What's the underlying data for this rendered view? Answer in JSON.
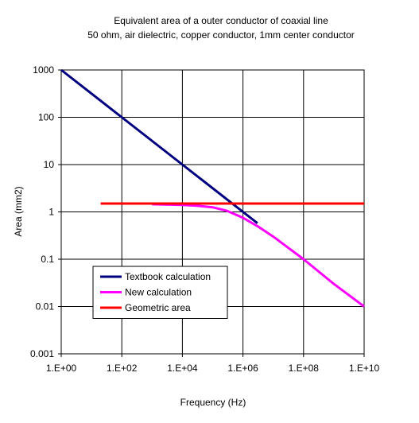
{
  "chart_data": {
    "type": "line",
    "title": "Equivalent area of a outer conductor of coaxial line",
    "subtitle": "50 ohm, air dielectric, copper conductor, 1mm center conductor",
    "xlabel": "Frequency (Hz)",
    "ylabel": "Area (mm2)",
    "x_scale": "log",
    "y_scale": "log",
    "xlim": [
      1,
      10000000000
    ],
    "ylim": [
      0.001,
      1000
    ],
    "x_ticks": [
      1,
      100,
      10000,
      1000000,
      100000000,
      10000000000
    ],
    "x_tick_labels": [
      "1.E+00",
      "1.E+02",
      "1.E+04",
      "1.E+06",
      "1.E+08",
      "1.E+10"
    ],
    "y_ticks": [
      0.001,
      0.01,
      0.1,
      1,
      10,
      100,
      1000
    ],
    "y_tick_labels": [
      "0.001",
      "0.01",
      "0.1",
      "1",
      "10",
      "100",
      "1000"
    ],
    "grid": true,
    "legend_position": "lower-left",
    "series": [
      {
        "name": "Textbook calculation",
        "color": "#000080",
        "x": [
          1,
          100,
          10000,
          1000000,
          3000000
        ],
        "y": [
          1000,
          100,
          10,
          1,
          0.577
        ]
      },
      {
        "name": "New calculation",
        "color": "#ff00ff",
        "x": [
          1000,
          10000,
          30000,
          100000,
          300000,
          1000000,
          3000000,
          10000000,
          100000000,
          1000000000,
          10000000000
        ],
        "y": [
          1.45,
          1.4,
          1.35,
          1.25,
          1.05,
          0.75,
          0.5,
          0.3,
          0.1,
          0.03,
          0.01
        ]
      },
      {
        "name": "Geometric area",
        "color": "#ff0000",
        "x": [
          20,
          10000000000
        ],
        "y": [
          1.5,
          1.5
        ]
      }
    ]
  }
}
